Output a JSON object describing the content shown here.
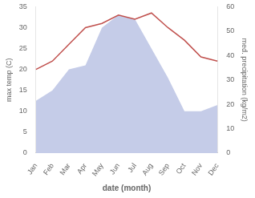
{
  "chart_data": {
    "type": "line",
    "xlabel": "date (month)",
    "ylabel": "max temp (C)",
    "y2label": "med. precipitation (kg/m2)",
    "categories": [
      "Jan",
      "Feb",
      "Mar",
      "Apr",
      "May",
      "Jun",
      "Jul",
      "Aug",
      "Sep",
      "Oct",
      "Nov",
      "Dec"
    ],
    "series": [
      {
        "type": "area",
        "color": "#c5cce8",
        "values": [
          12.5,
          15.0,
          20.0,
          21.0,
          30.0,
          33.0,
          32.0,
          25.0,
          18.0,
          10.0,
          10.0,
          11.5
        ]
      },
      {
        "type": "line",
        "color": "#c0504d",
        "values": [
          20.0,
          22.0,
          26.0,
          30.0,
          31.0,
          33.0,
          32.0,
          33.5,
          30.0,
          27.0,
          23.0,
          22.0
        ]
      }
    ],
    "ylim": [
      0,
      35
    ],
    "yticks": [
      0,
      5,
      10,
      15,
      20,
      25,
      30,
      35
    ],
    "y2lim": [
      0,
      60
    ],
    "y2ticks": [
      0,
      10,
      20,
      30,
      40,
      50,
      60
    ],
    "grid": false
  }
}
